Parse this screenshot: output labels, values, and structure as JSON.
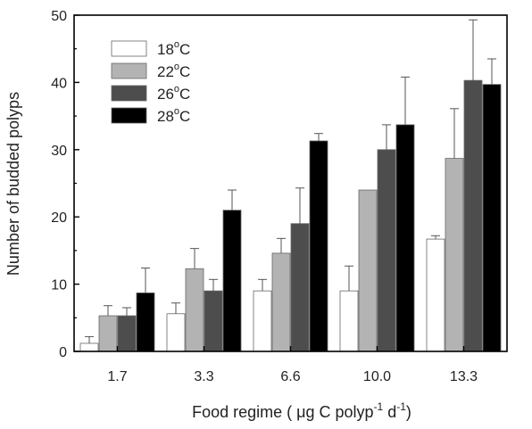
{
  "chart_data": {
    "type": "bar",
    "title": "",
    "xlabel": "Food regime ( μg C polyp-1 d-1)",
    "xlabel_parts": {
      "main": "Food regime ( μg C polyp",
      "sup1": "-1",
      "mid": " d",
      "sup2": "-1",
      "end": ")"
    },
    "ylabel": "Number of budded polyps",
    "categories": [
      "1.7",
      "3.3",
      "6.6",
      "10.0",
      "13.3"
    ],
    "ylim": [
      0,
      50
    ],
    "yticks": [
      0,
      10,
      20,
      30,
      40,
      50
    ],
    "legend_position": "top-left",
    "series": [
      {
        "name": "18°C",
        "name_parts": {
          "num": "18",
          "deg": "o",
          "unit": "C"
        },
        "color": "#ffffff",
        "values": [
          1.2,
          5.6,
          9.0,
          9.0,
          16.7
        ],
        "errors": [
          1.0,
          1.6,
          1.7,
          3.7,
          0.5
        ]
      },
      {
        "name": "22°C",
        "name_parts": {
          "num": "22",
          "deg": "o",
          "unit": "C"
        },
        "color": "#b3b3b3",
        "values": [
          5.3,
          12.3,
          14.6,
          24.0,
          28.7
        ],
        "errors": [
          1.5,
          3.0,
          2.2,
          0,
          7.4
        ]
      },
      {
        "name": "26°C",
        "name_parts": {
          "num": "26",
          "deg": "o",
          "unit": "C"
        },
        "color": "#4d4d4d",
        "values": [
          5.3,
          9.0,
          19.0,
          30.0,
          40.3
        ],
        "errors": [
          1.2,
          1.7,
          5.3,
          3.7,
          9.0
        ]
      },
      {
        "name": "28°C",
        "name_parts": {
          "num": "28",
          "deg": "o",
          "unit": "C"
        },
        "color": "#000000",
        "values": [
          8.7,
          21.0,
          31.3,
          33.7,
          39.7
        ],
        "errors": [
          3.7,
          3.0,
          1.1,
          7.1,
          3.8
        ]
      }
    ]
  }
}
